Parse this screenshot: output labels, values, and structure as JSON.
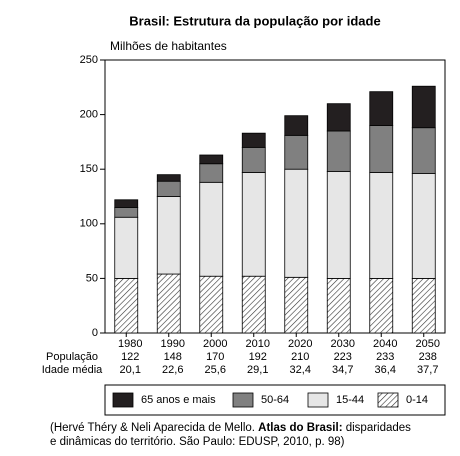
{
  "chart_data": {
    "type": "stacked_bar",
    "title": "Brasil: Estrutura da população por idade",
    "y_label": "Milhões de habitantes",
    "categories": [
      "1980",
      "1990",
      "2000",
      "2010",
      "2020",
      "2030",
      "2040",
      "2050"
    ],
    "series": [
      {
        "name": "0-14",
        "color": "#ffffff",
        "hatch": true,
        "values": [
          50,
          54,
          52,
          52,
          51,
          50,
          50,
          50
        ]
      },
      {
        "name": "15-44",
        "color": "#e6e6e6",
        "values": [
          56,
          71,
          86,
          95,
          99,
          98,
          97,
          96
        ]
      },
      {
        "name": "50-64",
        "color": "#808080",
        "values": [
          9,
          14,
          17,
          23,
          31,
          37,
          43,
          42
        ]
      },
      {
        "name": "65 anos e mais",
        "color": "#231f20",
        "values": [
          7,
          6,
          8,
          13,
          18,
          25,
          31,
          38
        ]
      }
    ],
    "rows": [
      {
        "name": "População",
        "values": [
          122,
          148,
          170,
          192,
          210,
          223,
          233,
          238
        ]
      },
      {
        "name": "Idade média",
        "values": [
          20.1,
          22.6,
          25.6,
          29.1,
          32.4,
          34.7,
          36.4,
          37.7
        ],
        "value_labels": [
          "20,1",
          "22,6",
          "25,6",
          "29,1",
          "32,4",
          "34,7",
          "36,4",
          "37,7"
        ]
      }
    ],
    "ylim": [
      0,
      250
    ],
    "yticks": [
      0,
      50,
      100,
      150,
      200,
      250
    ],
    "grid": false,
    "source": [
      "(Hervé Théry & Neli Aparecida de Mello. ",
      "Atlas do Brasil:",
      " disparidades",
      "e dinâmicas do território. São Paulo: EDUSP, 2010, p. 98)"
    ]
  }
}
